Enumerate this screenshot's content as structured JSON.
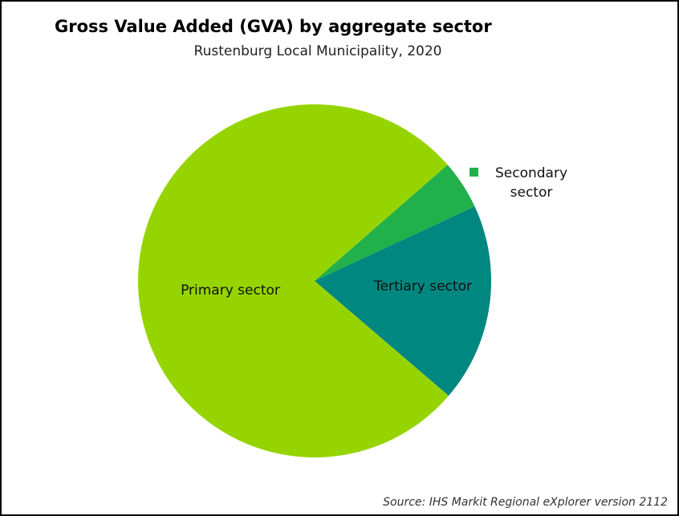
{
  "chart_data": {
    "type": "pie",
    "title": "Gross Value Added (GVA) by aggregate sector",
    "subtitle": "Rustenburg Local Municipality, 2020",
    "source": "Source: IHS Markit Regional eXplorer version 2112",
    "categories": [
      "Primary sector",
      "Secondary sector",
      "Tertiary sector"
    ],
    "values": [
      77.3,
      4.5,
      18.2
    ],
    "colors": [
      "#96d400",
      "#22b04b",
      "#00877f"
    ]
  }
}
